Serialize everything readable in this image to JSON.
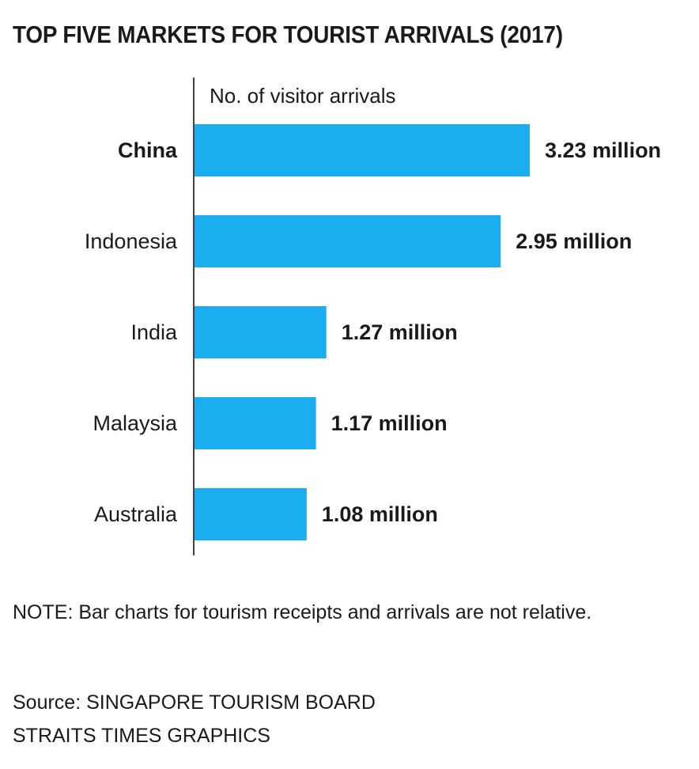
{
  "title": "TOP FIVE MARKETS FOR TOURIST ARRIVALS (2017)",
  "note": "NOTE: Bar charts for tourism receipts and arrivals are not relative.",
  "source": "Source: SINGAPORE TOURISM BOARD",
  "credit": "STRAITS TIMES GRAPHICS",
  "colors": {
    "bar": "#1aaef0",
    "axis": "#444444",
    "text": "#1a1a1a"
  },
  "chart_data": {
    "type": "bar",
    "orientation": "horizontal",
    "title": "TOP FIVE MARKETS FOR TOURIST ARRIVALS (2017)",
    "xlabel": "No. of visitor arrivals",
    "ylabel": "",
    "categories": [
      "China",
      "Indonesia",
      "India",
      "Malaysia",
      "Australia"
    ],
    "values": [
      3.23,
      2.95,
      1.27,
      1.17,
      1.08
    ],
    "value_labels": [
      "3.23 million",
      "2.95 million",
      "1.27 million",
      "1.17 million",
      "1.08 million"
    ],
    "unit": "million",
    "highlighted_category": "China",
    "xlim": [
      0,
      3.23
    ],
    "grid": false,
    "legend": "none"
  }
}
